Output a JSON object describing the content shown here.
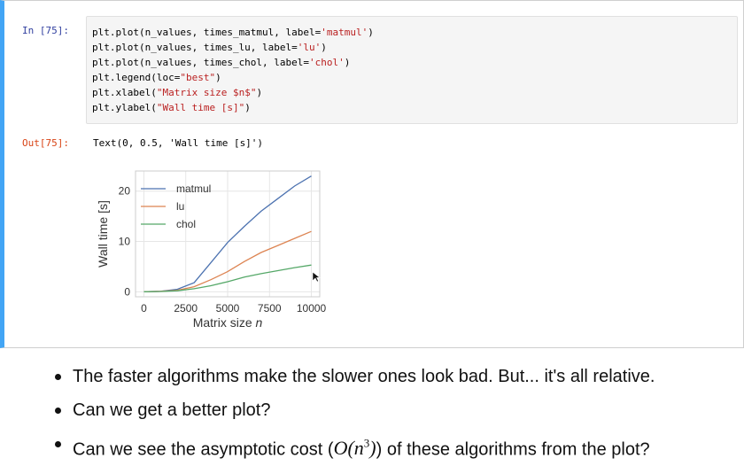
{
  "cell": {
    "in_prompt": "In [75]:",
    "out_prompt": "Out[75]:",
    "code": {
      "l1a": "plt.plot(n_values, times_matmul, label=",
      "l1s": "'matmul'",
      "l1b": ")",
      "l2a": "plt.plot(n_values, times_lu, label=",
      "l2s": "'lu'",
      "l2b": ")",
      "l3a": "plt.plot(n_values, times_chol, label=",
      "l3s": "'chol'",
      "l3b": ")",
      "l4a": "plt.legend(loc=",
      "l4s": "\"best\"",
      "l4b": ")",
      "l5a": "plt.xlabel(",
      "l5s": "\"Matrix size $n$\"",
      "l5b": ")",
      "l6a": "plt.ylabel(",
      "l6s": "\"Wall time [s]\"",
      "l6b": ")"
    },
    "output_text": "Text(0, 0.5, 'Wall time [s]')"
  },
  "chart_data": {
    "type": "line",
    "xlabel": "Matrix size n",
    "ylabel": "Wall time [s]",
    "xlim": [
      -500,
      10500
    ],
    "ylim": [
      -1,
      24
    ],
    "xticks": [
      "0",
      "2500",
      "5000",
      "7500",
      "10000"
    ],
    "yticks": [
      "0",
      "10",
      "20"
    ],
    "legend_loc": "top-left",
    "grid": true,
    "x": [
      0,
      1000,
      2000,
      3000,
      4000,
      5000,
      6000,
      7000,
      8000,
      9000,
      10000
    ],
    "series": [
      {
        "name": "matmul",
        "color": "#4c72b0",
        "values": [
          0.0,
          0.1,
          0.5,
          1.8,
          5.8,
          9.8,
          13.0,
          16.0,
          18.5,
          21.0,
          23.0
        ]
      },
      {
        "name": "lu",
        "color": "#dd8452",
        "values": [
          0.0,
          0.1,
          0.3,
          1.0,
          2.4,
          4.0,
          6.0,
          7.8,
          9.2,
          10.6,
          12.0
        ]
      },
      {
        "name": "chol",
        "color": "#55a868",
        "values": [
          0.0,
          0.05,
          0.2,
          0.6,
          1.2,
          2.0,
          2.9,
          3.6,
          4.2,
          4.8,
          5.3
        ]
      }
    ]
  },
  "bullets": {
    "b1": "The faster algorithms make the slower ones look bad. But... it's all relative.",
    "b2": "Can we get a better plot?",
    "b3_pre": "Can we see the asymptotic cost (",
    "b3_math_open": "O(n",
    "b3_math_sup": "3",
    "b3_math_close": ")",
    "b3_post": ") of these algorithms from the plot?"
  }
}
